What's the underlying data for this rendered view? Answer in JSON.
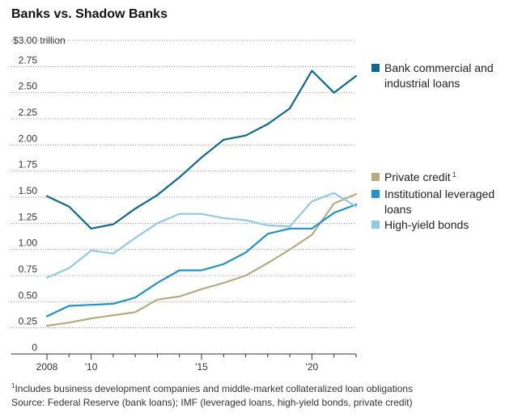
{
  "chart_data": {
    "type": "line",
    "title": "Banks vs. Shadow Banks",
    "y_unit_label": "$3.00 trillion",
    "ylim": [
      0,
      3.0
    ],
    "y_ticks": [
      "0",
      "0.25",
      "0.50",
      "0.75",
      "1.00",
      "1.25",
      "1.50",
      "1.75",
      "2.00",
      "2.25",
      "2.50",
      "2.75"
    ],
    "y_tick_values": [
      0,
      0.25,
      0.5,
      0.75,
      1.0,
      1.25,
      1.5,
      1.75,
      2.0,
      2.25,
      2.5,
      2.75
    ],
    "xlim": [
      2008,
      2022
    ],
    "x_ticks": [
      {
        "value": 2008,
        "label": "2008"
      },
      {
        "value": 2010,
        "label": "'10"
      },
      {
        "value": 2015,
        "label": "'15"
      },
      {
        "value": 2020,
        "label": "'20"
      }
    ],
    "grid": "horizontal",
    "legend_placement": "right",
    "x": [
      2008,
      2009,
      2010,
      2011,
      2012,
      2013,
      2014,
      2015,
      2016,
      2017,
      2018,
      2019,
      2020,
      2021,
      2022
    ],
    "series": [
      {
        "name": "Bank commercial and industrial loans",
        "legend_lines": [
          "Bank commercial and",
          "industrial loans"
        ],
        "color": "#0b6a93",
        "values": [
          1.51,
          1.41,
          1.2,
          1.24,
          1.39,
          1.52,
          1.69,
          1.88,
          2.05,
          2.09,
          2.2,
          2.35,
          2.71,
          2.5,
          2.66
        ]
      },
      {
        "name": "Private credit",
        "legend_lines": [
          "Private credit"
        ],
        "footnote_marker": "1",
        "color": "#b3ad7e",
        "values": [
          0.27,
          0.3,
          0.34,
          0.37,
          0.4,
          0.52,
          0.55,
          0.62,
          0.68,
          0.75,
          0.87,
          1.0,
          1.14,
          1.44,
          1.53
        ]
      },
      {
        "name": "Institutional leveraged loans",
        "legend_lines": [
          "Institutional leveraged",
          "loans"
        ],
        "color": "#1d93cf",
        "values": [
          0.36,
          0.46,
          0.47,
          0.48,
          0.54,
          0.68,
          0.8,
          0.8,
          0.86,
          0.97,
          1.15,
          1.2,
          1.2,
          1.35,
          1.43
        ]
      },
      {
        "name": "High-yield bonds",
        "legend_lines": [
          "High-yield bonds"
        ],
        "color": "#8fcbe8",
        "values": [
          0.73,
          0.82,
          0.99,
          0.96,
          1.11,
          1.25,
          1.34,
          1.34,
          1.3,
          1.28,
          1.23,
          1.22,
          1.46,
          1.54,
          1.41
        ]
      }
    ]
  },
  "footnotes": {
    "note_marker": "1",
    "note_text": "Includes business development companies and middle-market collateralized loan obligations",
    "source": "Source: Federal Reserve (bank loans); IMF (leveraged loans, high-yield bonds, private credit)"
  }
}
